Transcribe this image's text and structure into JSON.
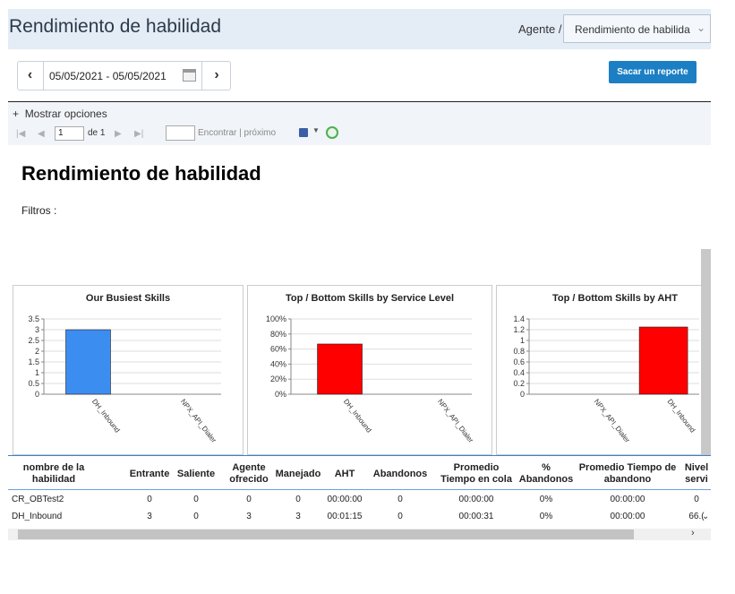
{
  "header": {
    "title": "Rendimiento de habilidad",
    "breadcrumb_agent": "Agente /",
    "breadcrumb_select": "Rendimiento de habilida"
  },
  "date_range": {
    "value": "05/05/2021 - 05/05/2021",
    "prev_icon": "chevron-left-icon",
    "next_icon": "chevron-right-icon",
    "calendar_icon": "calendar-icon"
  },
  "actions": {
    "report_button": "Sacar un reporte"
  },
  "toolbar": {
    "show_options": "Mostrar opciones",
    "page_value": "1",
    "page_of": "de 1",
    "find_label": "Encontrar | próximo"
  },
  "report": {
    "title": "Rendimiento de habilidad",
    "filters_label": "Filtros :"
  },
  "chart_data": [
    {
      "type": "bar",
      "title": "Our Busiest Skills",
      "categories": [
        "DH_Inbound",
        "NPX_API_Dialer"
      ],
      "values": [
        3,
        0
      ],
      "ylim": [
        0,
        3.5
      ],
      "yticks": [
        "3.5",
        "3",
        "2.5",
        "2",
        "1.5",
        "1",
        "0.5",
        "0"
      ],
      "color": "#3c8df0",
      "grid": true
    },
    {
      "type": "bar",
      "title": "Top  / Bottom  Skills by Service Level",
      "categories": [
        "DH_Inbound",
        "NPX_API_Dialer"
      ],
      "values": [
        66.7,
        0
      ],
      "ylim": [
        0,
        100
      ],
      "yticks": [
        "100%",
        "80%",
        "60%",
        "40%",
        "20%",
        "0%"
      ],
      "color": "#ff0000",
      "grid": true
    },
    {
      "type": "bar",
      "title": "Top  / Bottom  Skills by AHT",
      "categories": [
        "NPX_API_Dialer",
        "DH_Inbound"
      ],
      "values": [
        0,
        1.25
      ],
      "ylim": [
        0,
        1.4
      ],
      "yticks": [
        "1.4",
        "1.2",
        "1",
        "0.8",
        "0.6",
        "0.4",
        "0.2",
        "0"
      ],
      "color": "#ff0000",
      "grid": true
    }
  ],
  "table": {
    "columns": [
      "nombre de la habilidad",
      "Entrante",
      "Saliente",
      "Agente ofrecido",
      "Manejado",
      "AHT",
      "Abandonos",
      "Promedio Tiempo en cola",
      "% Abandonos",
      "Promedio Tiempo de abandono",
      "Nivel servi"
    ],
    "rows": [
      [
        "CR_OBTest2",
        "0",
        "0",
        "0",
        "0",
        "00:00:00",
        "0",
        "00:00:00",
        "0%",
        "00:00:00",
        "0"
      ],
      [
        "DH_Inbound",
        "3",
        "0",
        "3",
        "3",
        "00:01:15",
        "0",
        "00:00:31",
        "0%",
        "00:00:00",
        "66.("
      ]
    ]
  }
}
